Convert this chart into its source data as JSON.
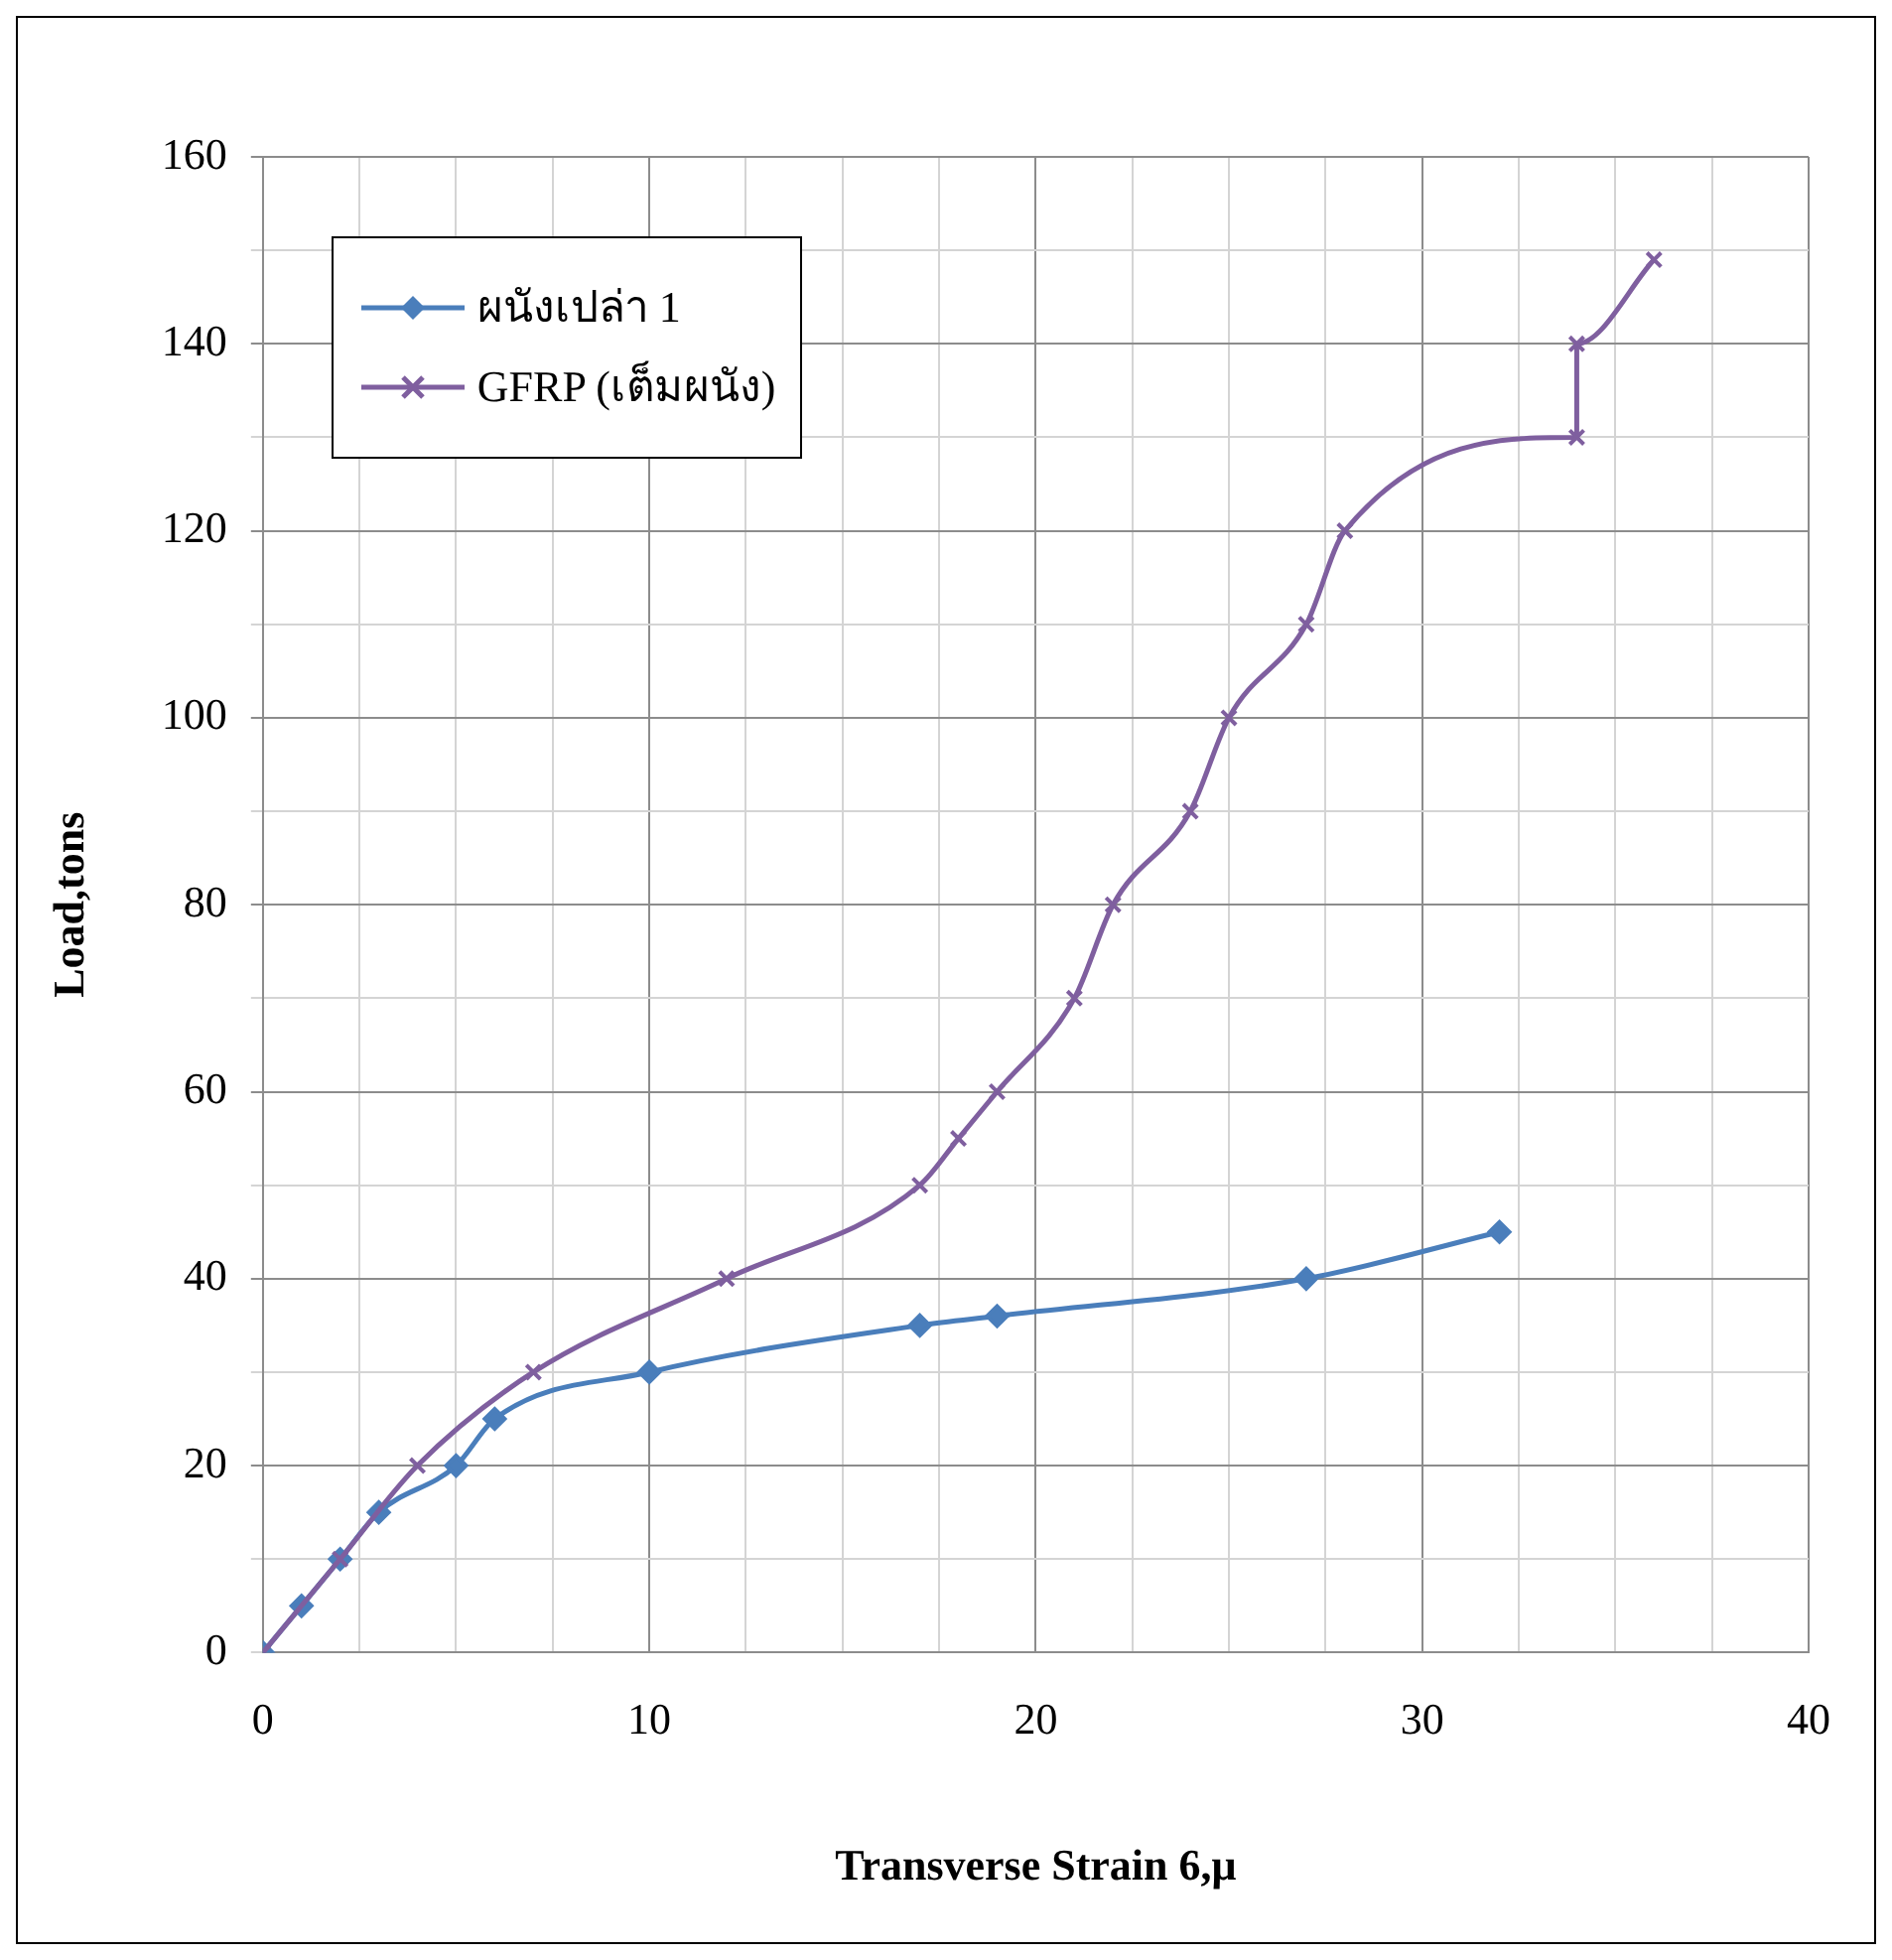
{
  "chart_data": {
    "type": "line",
    "xlabel": "Transverse Strain 6,μ",
    "ylabel": "Load,tons",
    "xlim": [
      0,
      40
    ],
    "ylim": [
      0,
      160
    ],
    "xticks": [
      0,
      {
        "value": 2.5,
        "label": null
      },
      {
        "value": 5,
        "label": null
      },
      {
        "value": 7.5,
        "label": null
      },
      10,
      {
        "value": 12.5,
        "label": null
      },
      {
        "value": 15,
        "label": null
      },
      {
        "value": 17.5,
        "label": null
      },
      20,
      {
        "value": 22.5,
        "label": null
      },
      {
        "value": 25,
        "label": null
      },
      {
        "value": 27.5,
        "label": null
      },
      30,
      {
        "value": 32.5,
        "label": null
      },
      {
        "value": 35,
        "label": null
      },
      {
        "value": 37.5,
        "label": null
      },
      40
    ],
    "yticks": [
      0,
      {
        "value": 10,
        "label": null
      },
      20,
      {
        "value": 30,
        "label": null
      },
      40,
      {
        "value": 50,
        "label": null
      },
      60,
      {
        "value": 70,
        "label": null
      },
      80,
      {
        "value": 90,
        "label": null
      },
      100,
      {
        "value": 110,
        "label": null
      },
      120,
      {
        "value": 130,
        "label": null
      },
      140,
      {
        "value": 150,
        "label": null
      },
      160
    ],
    "grid": true,
    "legend": "top left",
    "line_style": "solid",
    "series": [
      {
        "name": "ผนังเปล่า 1",
        "color": "#4a7ebb",
        "marker": "diamond",
        "x": [
          0,
          1,
          2,
          3,
          5,
          6,
          10,
          17,
          19,
          27,
          32
        ],
        "values": [
          0,
          5,
          10,
          15,
          20,
          25,
          30,
          35,
          36,
          40,
          45
        ]
      },
      {
        "name": "GFRP (เต็มผนัง)",
        "color": "#7f5f9f",
        "marker": "cross",
        "x": [
          0,
          2,
          4,
          7,
          12,
          17,
          18,
          19,
          21,
          22,
          24,
          25,
          27,
          28,
          34,
          34,
          36
        ],
        "values": [
          0,
          10,
          20,
          30,
          40,
          50,
          55,
          60,
          70,
          80,
          90,
          100,
          110,
          120,
          130,
          140,
          149
        ]
      }
    ]
  }
}
